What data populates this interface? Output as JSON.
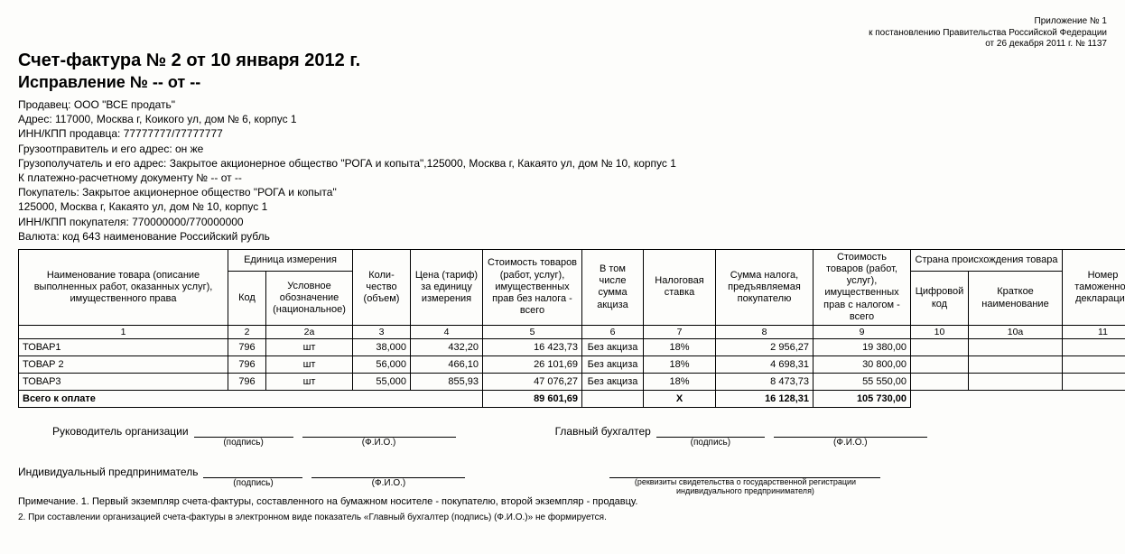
{
  "topnote": {
    "line1": "Приложение № 1",
    "line2": "к постановлению Правительства Российской Федерации",
    "line3": "от 26 декабря 2011 г. № 1137"
  },
  "title": "Счет-фактура № 2 от 10 января 2012 г.",
  "subtitle": "Исправление № -- от --",
  "info": [
    "Продавец: ООО \"ВСЕ продать\"",
    "Адрес: 117000, Москва г, Коикого ул, дом № 6, корпус 1",
    "ИНН/КПП продавца: 77777777/77777777",
    "Грузоотправитель и его адрес: он же",
    "Грузополучатель и его адрес: Закрытое акционерное общество \"РОГА и копыта\",125000, Москва г, Какаято ул, дом № 10, корпус 1",
    "К платежно-расчетному документу № -- от --",
    "Покупатель: Закрытое акционерное общество \"РОГА и копыта\"",
    "125000, Москва г, Какаято ул, дом № 10, корпус 1",
    "ИНН/КПП покупателя: 770000000/770000000",
    "Валюта: код 643 наименование Российский рубль"
  ],
  "headers": {
    "h1": "Наименование товара (описание выполненных работ, оказанных услуг), имущественного права",
    "h2_group": "Единица измерения",
    "h2": "Код",
    "h2a": "Условное обозначение (национальное)",
    "h3": "Коли-чество (объем)",
    "h4": "Цена (тариф) за единицу измерения",
    "h5": "Стоимость товаров (работ, услуг), имущественных прав без налога - всего",
    "h6": "В том числе сумма акциза",
    "h7": "Налоговая ставка",
    "h8": "Сумма налога, предъявляемая покупателю",
    "h9": "Стоимость товаров (работ, услуг), имущественных прав с налогом - всего",
    "h10_group": "Страна происхождения товара",
    "h10": "Цифровой код",
    "h10a": "Краткое наименование",
    "h11": "Номер таможенной декларации"
  },
  "numrow": {
    "n1": "1",
    "n2": "2",
    "n2a": "2а",
    "n3": "3",
    "n4": "4",
    "n5": "5",
    "n6": "6",
    "n7": "7",
    "n8": "8",
    "n9": "9",
    "n10": "10",
    "n10a": "10а",
    "n11": "11"
  },
  "rows": [
    {
      "name": "ТОВАР1",
      "code": "796",
      "unit": "шт",
      "qty": "38,000",
      "price": "432,20",
      "sum_no_vat": "16 423,73",
      "excise": "Без акциза",
      "rate": "18%",
      "vat": "2 956,27",
      "sum_vat": "19 380,00",
      "c_code": "",
      "c_name": "",
      "decl": ""
    },
    {
      "name": "ТОВАР 2",
      "code": "796",
      "unit": "шт",
      "qty": "56,000",
      "price": "466,10",
      "sum_no_vat": "26 101,69",
      "excise": "Без акциза",
      "rate": "18%",
      "vat": "4 698,31",
      "sum_vat": "30 800,00",
      "c_code": "",
      "c_name": "",
      "decl": ""
    },
    {
      "name": "ТОВАР3",
      "code": "796",
      "unit": "шт",
      "qty": "55,000",
      "price": "855,93",
      "sum_no_vat": "47 076,27",
      "excise": "Без акциза",
      "rate": "18%",
      "vat": "8 473,73",
      "sum_vat": "55 550,00",
      "c_code": "",
      "c_name": "",
      "decl": ""
    }
  ],
  "total": {
    "label": "Всего к оплате",
    "sum_no_vat": "89 601,69",
    "x": "X",
    "vat": "16 128,31",
    "sum_vat": "105 730,00"
  },
  "sign": {
    "head": "Руководитель организации",
    "accountant": "Главный бухгалтер",
    "ip": "Индивидуальный предприниматель",
    "sig": "(подпись)",
    "fio": "(Ф.И.О.)",
    "ip_rek": "(реквизиты свидетельства о государственной регистрации индивидуального предпринимателя)"
  },
  "footnotes": {
    "f1": "Примечание. 1. Первый экземпляр счета-фактуры, составленного на бумажном носителе - покупателю, второй экземпляр - продавцу.",
    "f2": "2. При составлении организацией счета-фактуры в электронном виде показатель «Главный бухгалтер (подпись) (Ф.И.О.)» не формируется."
  }
}
